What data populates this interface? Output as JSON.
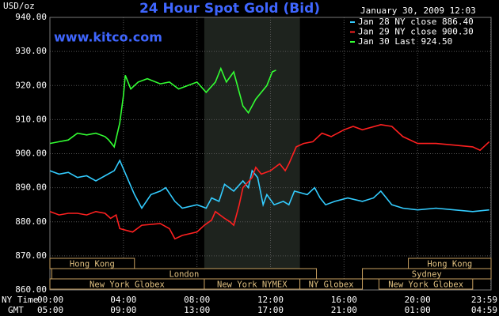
{
  "chart_data": {
    "type": "line",
    "title": "24 Hour Spot Gold (Bid)",
    "timestamp": "January 30, 2009 12:03",
    "y_unit": "USD/oz",
    "watermark": "www.kitco.com",
    "x_row_labels": [
      "NY Time",
      "GMT"
    ],
    "xlim": [
      0,
      24
    ],
    "xticks": [
      {
        "value": 0,
        "label": "00:00"
      },
      {
        "value": 4,
        "label": "04:00"
      },
      {
        "value": 8,
        "label": "08:00"
      },
      {
        "value": 12,
        "label": "12:00"
      },
      {
        "value": 16,
        "label": "16:00"
      },
      {
        "value": 20,
        "label": "20:00"
      },
      {
        "value": 23.98,
        "label": "23:59"
      }
    ],
    "gmt_tick_labels": [
      "05:00",
      "09:00",
      "13:00",
      "17:00",
      "21:00",
      "01:00",
      "04:59"
    ],
    "ylim": [
      860,
      940
    ],
    "yticks": [
      {
        "value": 860,
        "label": "860.00"
      },
      {
        "value": 870,
        "label": "870.00"
      },
      {
        "value": 880,
        "label": "880.00"
      },
      {
        "value": 890,
        "label": "890.00"
      },
      {
        "value": 900,
        "label": "900.00"
      },
      {
        "value": 910,
        "label": "910.00"
      },
      {
        "value": 920,
        "label": "920.00"
      },
      {
        "value": 930,
        "label": "930.00"
      },
      {
        "value": 940,
        "label": "940.00"
      }
    ],
    "grid": true,
    "shaded_range": [
      8.4,
      13.6
    ],
    "series": [
      {
        "name": "Jan 28 NY close 886.40",
        "color": "#33ccff",
        "x": [
          0,
          0.5,
          1,
          1.5,
          2,
          2.5,
          3,
          3.5,
          3.8,
          4.2,
          4.6,
          5,
          5.5,
          6,
          6.3,
          6.8,
          7.2,
          8,
          8.5,
          8.8,
          9.2,
          9.5,
          10,
          10.5,
          10.8,
          11,
          11.3,
          11.6,
          11.8,
          12.2,
          12.7,
          13,
          13.3,
          14,
          14.4,
          14.7,
          15,
          15.5,
          16.2,
          17,
          17.6,
          18,
          18.6,
          19.2,
          20,
          21,
          22,
          23,
          23.9
        ],
        "values": [
          895,
          894,
          894.5,
          893,
          893.5,
          892,
          893.5,
          895,
          898,
          893,
          888,
          884,
          888,
          889,
          890,
          886,
          884,
          885,
          884,
          887,
          886,
          891,
          889,
          892,
          890,
          895,
          893,
          885,
          888,
          885,
          886,
          885,
          889,
          888,
          890,
          887,
          885,
          886,
          887,
          886,
          887,
          889,
          885,
          884,
          883.5,
          884,
          883.5,
          883,
          883.5
        ]
      },
      {
        "name": "Jan 29 NY close 900.30",
        "color": "#ff2020",
        "x": [
          0,
          0.5,
          1,
          1.5,
          2,
          2.5,
          3,
          3.3,
          3.6,
          3.8,
          4.5,
          5,
          6,
          6.5,
          6.8,
          7.2,
          8,
          8.4,
          8.8,
          9,
          9.5,
          9.8,
          10,
          10.3,
          10.5,
          11,
          11.2,
          11.5,
          12,
          12.5,
          12.8,
          13,
          13.4,
          13.8,
          14.3,
          14.8,
          15.3,
          16,
          16.5,
          17,
          18,
          18.6,
          19.2,
          20,
          21,
          22,
          23,
          23.4,
          23.9
        ],
        "values": [
          883,
          882,
          882.5,
          882.5,
          882,
          883,
          882.5,
          881,
          882,
          878,
          877,
          879,
          879.5,
          878,
          875,
          876,
          877,
          879,
          880.5,
          883,
          881,
          880,
          879,
          885,
          890,
          893,
          896,
          894,
          895,
          897,
          895,
          897,
          902,
          903,
          903.5,
          906,
          905,
          907,
          908,
          907,
          908.5,
          908,
          905,
          903,
          903,
          902.5,
          902,
          901,
          903.5
        ]
      },
      {
        "name": "Jan 30 Last 924.50",
        "color": "#33ff33",
        "x": [
          0,
          0.5,
          1,
          1.5,
          2,
          2.5,
          3,
          3.2,
          3.5,
          3.8,
          4,
          4.1,
          4.4,
          4.8,
          5.3,
          6,
          6.5,
          7,
          7.5,
          8,
          8.5,
          9,
          9.3,
          9.6,
          10,
          10.5,
          10.8,
          11.2,
          11.8,
          12.1,
          12.3
        ],
        "values": [
          903,
          903.5,
          904,
          906,
          905.5,
          906,
          905,
          904,
          902,
          909,
          917,
          923,
          919,
          921,
          922,
          920.5,
          921,
          919,
          920,
          921,
          918,
          921,
          925,
          921,
          924,
          914,
          912,
          916,
          920,
          924,
          924.5
        ]
      }
    ],
    "session_rows": [
      [
        {
          "label": "Hong Kong",
          "start": 0,
          "end": 4.6
        },
        {
          "label": "Hong Kong",
          "start": 19.5,
          "end": 24
        }
      ],
      [
        {
          "label": "London",
          "start": 0.1,
          "end": 14.5
        },
        {
          "label": "Sydney",
          "start": 17,
          "end": 24
        }
      ],
      [
        {
          "label": "New York Globex",
          "start": 0,
          "end": 8.4
        },
        {
          "label": "New York NYMEX",
          "start": 8.4,
          "end": 13.6
        },
        {
          "label": "NY Globex",
          "start": 13.6,
          "end": 17
        },
        {
          "label": "New York Globex",
          "start": 17.9,
          "end": 23
        }
      ]
    ]
  }
}
